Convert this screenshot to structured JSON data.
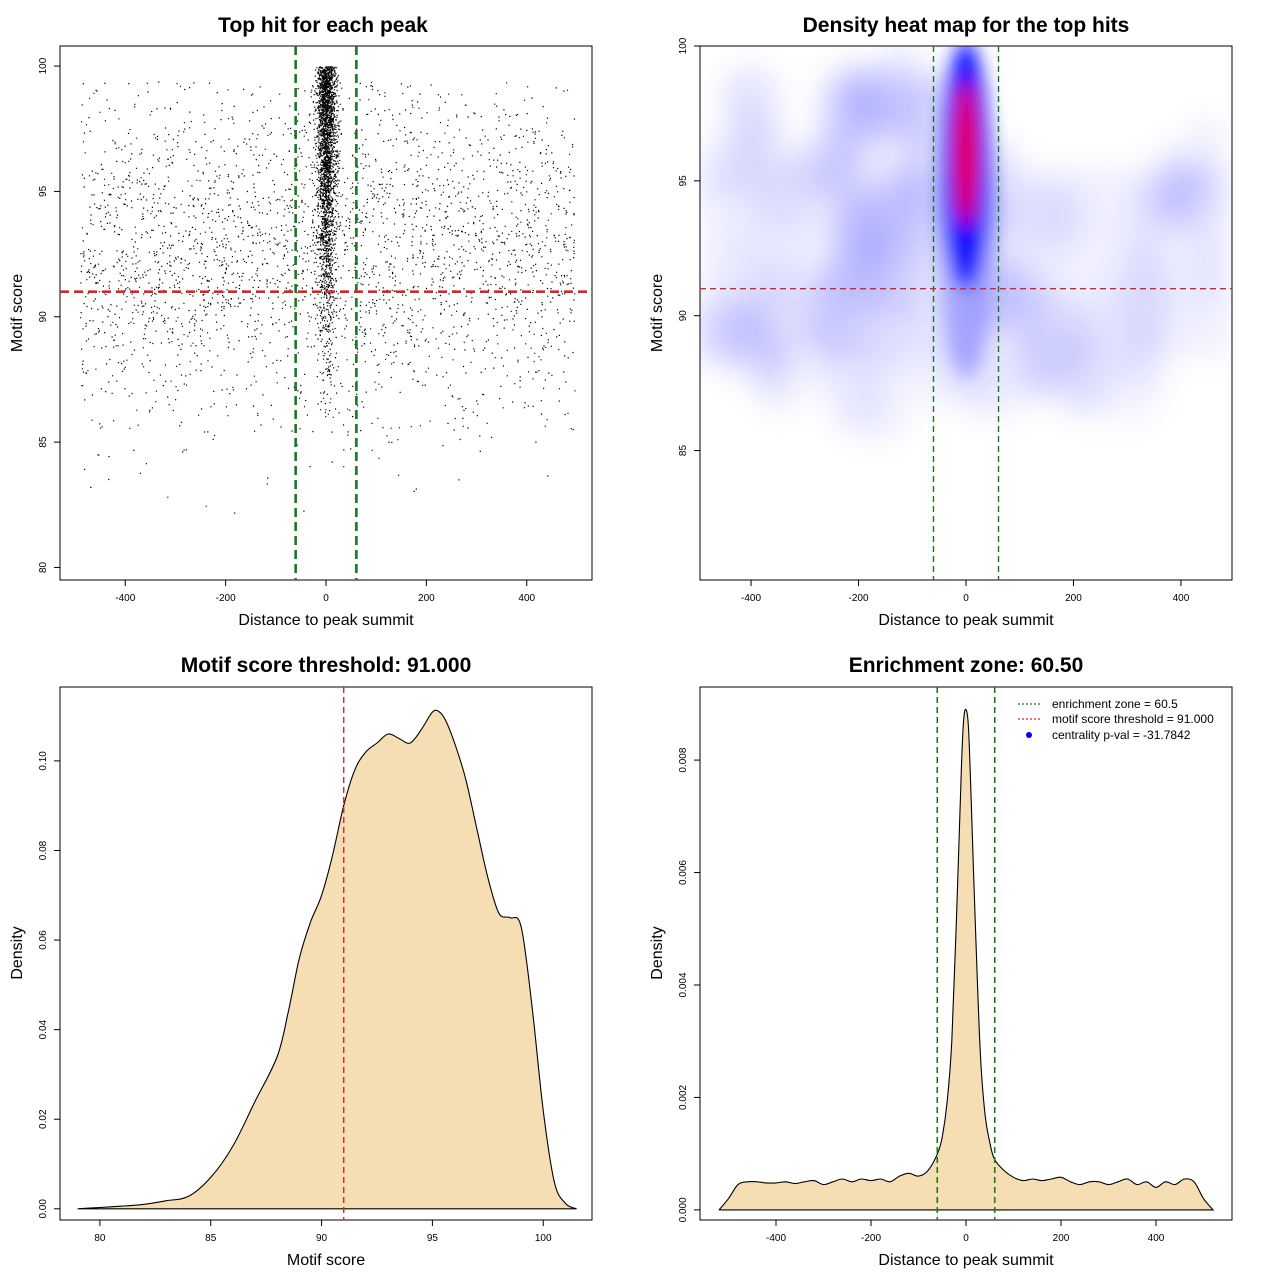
{
  "chart_data": [
    {
      "id": "scatter",
      "type": "scatter",
      "title": "Top hit for each peak",
      "xlabel": "Distance to peak summit",
      "ylabel": "Motif score",
      "xlim": [
        -530,
        530
      ],
      "ylim": [
        79.5,
        100.8
      ],
      "xticks": [
        -400,
        -200,
        0,
        200,
        400
      ],
      "yticks": [
        80,
        85,
        90,
        95,
        100
      ],
      "hlines": [
        {
          "y": 91.0,
          "color": "#d62728",
          "style": "dashed"
        }
      ],
      "vlines": [
        {
          "x": -60.5,
          "color": "#1a7a1a",
          "style": "dashed"
        },
        {
          "x": 60.5,
          "color": "#1a7a1a",
          "style": "dashed"
        }
      ],
      "points_description": "about 6,000 points: uniform background over x -490..495 with scores mostly 84-100, plus a dense central column at |x| < 25 with scores 86-100"
    },
    {
      "id": "heatmap",
      "type": "heatmap",
      "title": "Density heat map for the top hits",
      "xlabel": "Distance to peak summit",
      "ylabel": "Motif score",
      "xlim": [
        -495,
        495
      ],
      "ylim": [
        80.2,
        100
      ],
      "xticks": [
        -400,
        -200,
        0,
        200,
        400
      ],
      "yticks": [
        85,
        90,
        95,
        100
      ],
      "hlines": [
        {
          "y": 91.0,
          "color": "#d62728",
          "style": "dashed"
        }
      ],
      "vlines": [
        {
          "x": -60.5,
          "color": "#1a7a1a",
          "style": "dashed"
        },
        {
          "x": 60.5,
          "color": "#1a7a1a",
          "style": "dashed"
        }
      ],
      "colors": [
        "#ffffff",
        "#0000ff",
        "#ff0000"
      ],
      "hotspot": {
        "x": 0,
        "y": 96
      }
    },
    {
      "id": "score_density",
      "type": "area",
      "title": "Motif score threshold: 91.000",
      "xlabel": "Motif score",
      "ylabel": "Density",
      "xlim": [
        78.2,
        102.2
      ],
      "ylim": [
        -0.0025,
        0.1165
      ],
      "xticks": [
        80,
        85,
        90,
        95,
        100
      ],
      "yticks": [
        0.0,
        0.02,
        0.04,
        0.06,
        0.08,
        0.1
      ],
      "ytick_labels": [
        "0.00",
        "0.02",
        "0.04",
        "0.06",
        "0.08",
        "0.10"
      ],
      "fill": "#f5deb3",
      "vlines": [
        {
          "x": 91.0,
          "color": "#d62728",
          "style": "dashed"
        }
      ],
      "x": [
        79.0,
        80.0,
        81.0,
        82.0,
        83.0,
        84.0,
        85.0,
        86.0,
        87.0,
        88.0,
        88.5,
        89.0,
        89.5,
        90.0,
        90.5,
        91.0,
        91.5,
        92.0,
        92.5,
        93.0,
        93.5,
        94.0,
        94.5,
        95.0,
        95.3,
        95.6,
        96.0,
        96.5,
        97.0,
        97.5,
        98.0,
        98.5,
        99.0,
        99.5,
        100.0,
        100.5,
        101.0,
        101.5
      ],
      "y": [
        0.0,
        0.0003,
        0.0006,
        0.001,
        0.0018,
        0.0028,
        0.007,
        0.014,
        0.024,
        0.034,
        0.044,
        0.056,
        0.064,
        0.07,
        0.079,
        0.09,
        0.098,
        0.102,
        0.104,
        0.106,
        0.105,
        0.104,
        0.107,
        0.1109,
        0.111,
        0.109,
        0.104,
        0.096,
        0.085,
        0.074,
        0.066,
        0.065,
        0.063,
        0.045,
        0.022,
        0.006,
        0.0012,
        0.0
      ]
    },
    {
      "id": "distance_density",
      "type": "area",
      "title": "Enrichment zone: 60.50",
      "xlabel": "Distance to peak summit",
      "ylabel": "Density",
      "xlim": [
        -560,
        560
      ],
      "ylim": [
        -0.00018,
        0.0093
      ],
      "xticks": [
        -400,
        -200,
        0,
        200,
        400
      ],
      "yticks": [
        0.0,
        0.002,
        0.004,
        0.006,
        0.008
      ],
      "ytick_labels": [
        "0.000",
        "0.002",
        "0.004",
        "0.006",
        "0.008"
      ],
      "fill": "#f5deb3",
      "vlines": [
        {
          "x": -60.5,
          "color": "#1a7a1a",
          "style": "dashed"
        },
        {
          "x": 60.5,
          "color": "#1a7a1a",
          "style": "dashed"
        }
      ],
      "x": [
        -520,
        -500,
        -480,
        -460,
        -440,
        -420,
        -400,
        -380,
        -360,
        -340,
        -320,
        -300,
        -280,
        -260,
        -240,
        -220,
        -200,
        -180,
        -160,
        -140,
        -120,
        -100,
        -80,
        -60,
        -50,
        -40,
        -30,
        -20,
        -10,
        -5,
        0,
        5,
        10,
        20,
        30,
        40,
        50,
        60,
        80,
        100,
        120,
        140,
        160,
        180,
        200,
        220,
        240,
        260,
        280,
        300,
        320,
        340,
        360,
        380,
        400,
        420,
        440,
        460,
        480,
        500,
        520
      ],
      "y": [
        0.0,
        0.0002,
        0.00045,
        0.0005,
        0.0005,
        0.00048,
        0.00048,
        0.0005,
        0.00047,
        0.0005,
        0.00052,
        0.00045,
        0.0005,
        0.00055,
        0.0005,
        0.00055,
        0.00052,
        0.00055,
        0.0005,
        0.0006,
        0.00065,
        0.0006,
        0.0007,
        0.001,
        0.0013,
        0.0019,
        0.003,
        0.0052,
        0.0078,
        0.0087,
        0.0089,
        0.0086,
        0.0075,
        0.005,
        0.0028,
        0.0017,
        0.0012,
        0.0009,
        0.0007,
        0.00058,
        0.00052,
        0.00055,
        0.00052,
        0.00055,
        0.00058,
        0.0005,
        0.00045,
        0.0005,
        0.0005,
        0.00045,
        0.0005,
        0.00055,
        0.00045,
        0.0005,
        0.0004,
        0.0005,
        0.00045,
        0.00055,
        0.0005,
        0.0002,
        0.0
      ],
      "legend": [
        {
          "label": "enrichment zone = 60.5",
          "color": "#1a7a1a",
          "kind": "dotted-line"
        },
        {
          "label": "motif score threshold = 91.000",
          "color": "#d62728",
          "kind": "dotted-line"
        },
        {
          "label": "centrality p-val = -31.7842",
          "color": "#0000ff",
          "kind": "point"
        }
      ],
      "legend_position": "top-right"
    }
  ]
}
